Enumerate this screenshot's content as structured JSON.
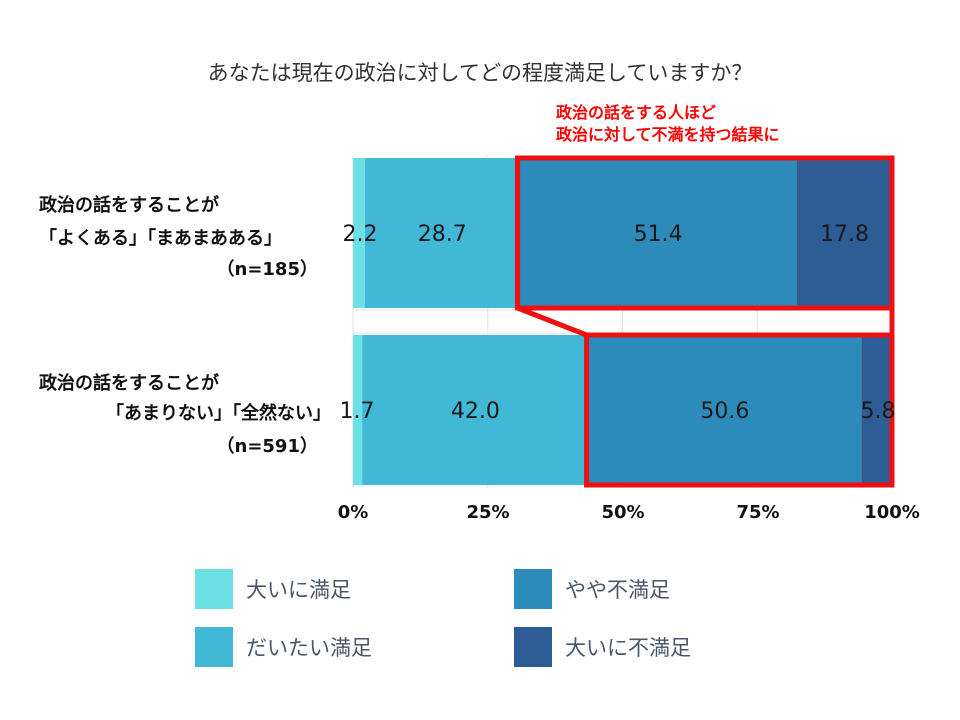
{
  "chart_data": {
    "type": "bar",
    "orientation": "horizontal",
    "stacked": true,
    "percent": true,
    "title": "あなたは現在の政治に対してどの程度満足していますか？",
    "annotation": {
      "line1": "政治の話をする人ほど",
      "line2": "政治に対して不満を持つ結果に",
      "color": "#ff0000"
    },
    "categories": [
      {
        "line1": "政治の話をすることが",
        "line2": "「よくある」「まあまあある」",
        "line3": "（n=185）"
      },
      {
        "line1": "政治の話をすることが",
        "line2": "「あまりない」「全然ない」",
        "line3": "（n=591）"
      }
    ],
    "series": [
      {
        "name": "大いに満足",
        "color": "#6de0e6",
        "values": [
          2.2,
          1.7
        ]
      },
      {
        "name": "だいたい満足",
        "color": "#41b8d6",
        "values": [
          28.7,
          42.0
        ]
      },
      {
        "name": "やや不満足",
        "color": "#2d8bbb",
        "values": [
          51.4,
          50.6
        ]
      },
      {
        "name": "大いに不満足",
        "color": "#2e5c94",
        "values": [
          17.8,
          5.8
        ]
      }
    ],
    "data_labels": [
      [
        "2.2",
        "28.7",
        "51.4",
        "17.8"
      ],
      [
        "1.7",
        "42.0",
        "50.6",
        "5.8"
      ]
    ],
    "xticks": [
      "0%",
      "25%",
      "50%",
      "75%",
      "100%"
    ],
    "xlim": [
      0,
      100
    ],
    "highlight_color": "#ee1111",
    "grid": true,
    "legend_position": "bottom"
  }
}
